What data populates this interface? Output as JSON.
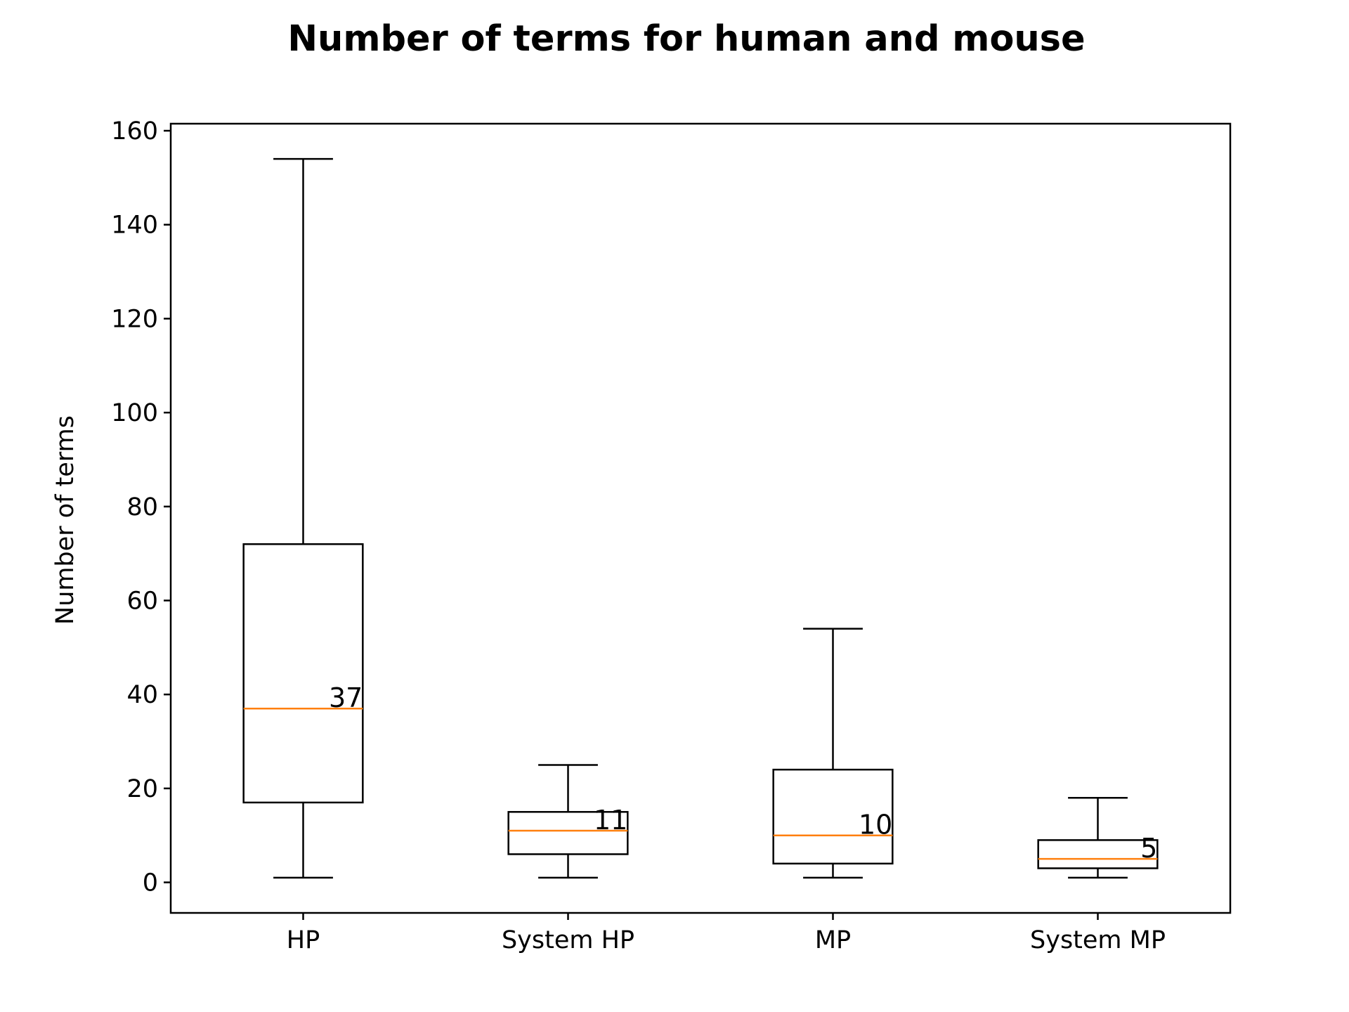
{
  "chart_data": {
    "type": "boxplot",
    "title": "Number of terms for human and mouse",
    "xlabel": "",
    "ylabel": "Number of terms",
    "ylim": [
      -6.5,
      161.5
    ],
    "yticks": [
      0,
      20,
      40,
      60,
      80,
      100,
      120,
      140,
      160
    ],
    "grid": false,
    "categories": [
      "HP",
      "System HP",
      "MP",
      "System MP"
    ],
    "boxes": [
      {
        "whisker_low": 1,
        "q1": 17,
        "median": 37,
        "q3": 72,
        "whisker_high": 154,
        "median_label": "37"
      },
      {
        "whisker_low": 1,
        "q1": 6,
        "median": 11,
        "q3": 15,
        "whisker_high": 25,
        "median_label": "11"
      },
      {
        "whisker_low": 1,
        "q1": 4,
        "median": 10,
        "q3": 24,
        "whisker_high": 54,
        "median_label": "10"
      },
      {
        "whisker_low": 1,
        "q1": 3,
        "median": 5,
        "q3": 9,
        "whisker_high": 18,
        "median_label": "5"
      }
    ],
    "colors": {
      "box": "#000000",
      "median": "#ff7f0e"
    }
  }
}
